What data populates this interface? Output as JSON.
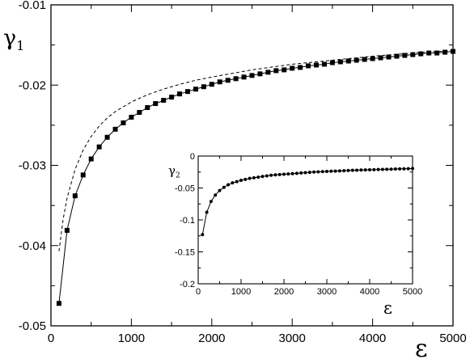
{
  "chart_data": [
    {
      "type": "line",
      "ylabel": "γ",
      "ylabel_sub": "1",
      "xlabel": "ε",
      "xlim": [
        0,
        5000
      ],
      "ylim": [
        -0.05,
        -0.01
      ],
      "x_ticks": [
        0,
        1000,
        2000,
        3000,
        4000,
        5000
      ],
      "x_tick_labels": [
        "0",
        "1000",
        "2000",
        "3000",
        "4000",
        "5000"
      ],
      "y_ticks": [
        -0.05,
        -0.04,
        -0.03,
        -0.02,
        -0.01
      ],
      "y_tick_labels": [
        "-0.05",
        "-0.04",
        "-0.03",
        "-0.02",
        "-0.01"
      ],
      "grid": false,
      "legend": "none",
      "series": [
        {
          "style": "solid line with square markers",
          "color": "#000000",
          "x": [
            100,
            200,
            300,
            400,
            500,
            600,
            700,
            800,
            900,
            1000,
            1100,
            1200,
            1300,
            1400,
            1500,
            1600,
            1700,
            1800,
            1900,
            2000,
            2100,
            2200,
            2300,
            2400,
            2500,
            2600,
            2700,
            2800,
            2900,
            3000,
            3100,
            3200,
            3300,
            3400,
            3500,
            3600,
            3700,
            3800,
            3900,
            4000,
            4100,
            4200,
            4300,
            4400,
            4500,
            4600,
            4700,
            4800,
            4900,
            5000
          ],
          "y": [
            -0.0472,
            -0.0381,
            -0.0338,
            -0.0312,
            -0.0292,
            -0.0277,
            -0.0265,
            -0.0255,
            -0.0247,
            -0.024,
            -0.0234,
            -0.0228,
            -0.0223,
            -0.0219,
            -0.0215,
            -0.0211,
            -0.0208,
            -0.0205,
            -0.0202,
            -0.0199,
            -0.0196,
            -0.0194,
            -0.0192,
            -0.019,
            -0.0188,
            -0.0186,
            -0.0184,
            -0.0182,
            -0.0181,
            -0.0179,
            -0.0178,
            -0.0176,
            -0.0175,
            -0.0174,
            -0.0172,
            -0.0171,
            -0.017,
            -0.0169,
            -0.0168,
            -0.0167,
            -0.0166,
            -0.0165,
            -0.0164,
            -0.0163,
            -0.0162,
            -0.0161,
            -0.016,
            -0.016,
            -0.0159,
            -0.0158
          ]
        },
        {
          "style": "dashed line",
          "color": "#000000",
          "x": [
            100,
            150,
            200,
            300,
            400,
            500,
            600,
            700,
            800,
            1000,
            1200,
            1400,
            1600,
            1800,
            2000,
            2500,
            3000,
            3500,
            4000,
            4500,
            5000
          ],
          "y": [
            -0.0407,
            -0.0368,
            -0.0341,
            -0.0305,
            -0.0281,
            -0.0264,
            -0.0251,
            -0.0241,
            -0.0233,
            -0.0221,
            -0.0212,
            -0.0205,
            -0.0199,
            -0.0194,
            -0.019,
            -0.0181,
            -0.0174,
            -0.0169,
            -0.0164,
            -0.016,
            -0.0157
          ]
        }
      ]
    },
    {
      "type": "line",
      "ylabel": "γ",
      "ylabel_sub": "2",
      "xlabel": "ε",
      "xlim": [
        0,
        5000
      ],
      "ylim": [
        -0.2,
        0
      ],
      "x_ticks": [
        0,
        1000,
        2000,
        3000,
        4000,
        5000
      ],
      "x_tick_labels": [
        "0",
        "1000",
        "2000",
        "3000",
        "4000",
        "5000"
      ],
      "y_ticks": [
        -0.2,
        -0.15,
        -0.1,
        -0.05,
        0
      ],
      "y_tick_labels": [
        "-0.2",
        "-0.15",
        "-0.1",
        "-0.05",
        "0"
      ],
      "grid": false,
      "legend": "none",
      "placement": "inset, lower-right",
      "series": [
        {
          "style": "solid line with circle markers",
          "color": "#000000",
          "x": [
            100,
            200,
            300,
            400,
            500,
            600,
            700,
            800,
            900,
            1000,
            1100,
            1200,
            1300,
            1400,
            1500,
            1600,
            1700,
            1800,
            1900,
            2000,
            2100,
            2200,
            2300,
            2400,
            2500,
            2600,
            2700,
            2800,
            2900,
            3000,
            3100,
            3200,
            3300,
            3400,
            3500,
            3600,
            3700,
            3800,
            3900,
            4000,
            4100,
            4200,
            4300,
            4400,
            4500,
            4600,
            4700,
            4800,
            4900,
            5000
          ],
          "y": [
            -0.123,
            -0.088,
            -0.071,
            -0.061,
            -0.054,
            -0.049,
            -0.045,
            -0.042,
            -0.04,
            -0.038,
            -0.0365,
            -0.035,
            -0.034,
            -0.033,
            -0.032,
            -0.031,
            -0.03,
            -0.0295,
            -0.029,
            -0.0285,
            -0.028,
            -0.0275,
            -0.027,
            -0.0265,
            -0.026,
            -0.0255,
            -0.025,
            -0.0247,
            -0.0244,
            -0.0241,
            -0.0238,
            -0.0235,
            -0.0232,
            -0.0229,
            -0.0226,
            -0.0223,
            -0.0221,
            -0.0219,
            -0.0217,
            -0.0215,
            -0.0213,
            -0.0211,
            -0.0209,
            -0.0207,
            -0.0205,
            -0.0203,
            -0.0201,
            -0.0199,
            -0.0197,
            -0.0195
          ]
        }
      ]
    }
  ]
}
